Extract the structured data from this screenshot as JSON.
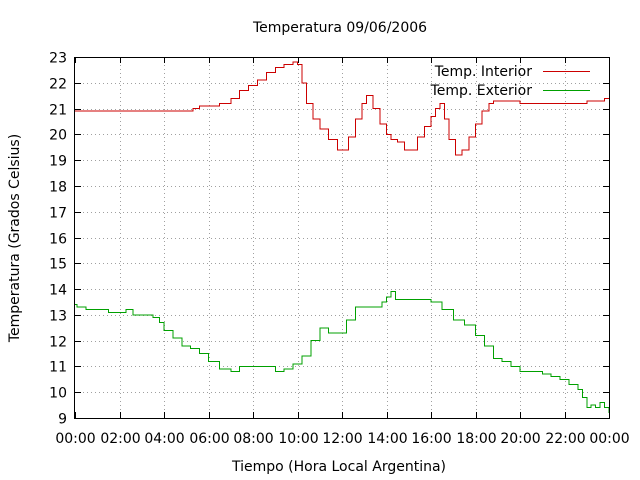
{
  "chart_data": {
    "type": "line",
    "title": "Temperatura 09/06/2006",
    "xlabel": "Tiempo (Hora Local Argentina)",
    "ylabel": "Temperatura (Grados Celsius)",
    "xlim": [
      0,
      24
    ],
    "ylim": [
      9,
      23
    ],
    "x_ticks": [
      "00:00",
      "02:00",
      "04:00",
      "06:00",
      "08:00",
      "10:00",
      "12:00",
      "14:00",
      "16:00",
      "18:00",
      "20:00",
      "22:00",
      "00:00"
    ],
    "y_ticks": [
      "9",
      "10",
      "11",
      "12",
      "13",
      "14",
      "15",
      "16",
      "17",
      "18",
      "19",
      "20",
      "21",
      "22",
      "23"
    ],
    "grid": true,
    "legend_position": "top-right",
    "series": [
      {
        "name": "Temp. Interior",
        "color": "#cc0000",
        "x": [
          0,
          5.25,
          5.3,
          5.6,
          6.0,
          6.5,
          6.8,
          7.0,
          7.4,
          7.8,
          8.2,
          8.6,
          9.0,
          9.4,
          9.8,
          10.0,
          10.2,
          10.4,
          10.7,
          11.0,
          11.4,
          11.8,
          12.1,
          12.3,
          12.6,
          12.9,
          13.1,
          13.4,
          13.7,
          14.0,
          14.2,
          14.5,
          14.8,
          15.1,
          15.4,
          15.7,
          16.0,
          16.2,
          16.4,
          16.6,
          16.8,
          17.1,
          17.4,
          17.7,
          18.0,
          18.3,
          18.6,
          18.8,
          19.2,
          20.0,
          21.0,
          22.0,
          22.6,
          23.0,
          23.4,
          23.8,
          24.0
        ],
        "y": [
          20.9,
          20.9,
          21.0,
          21.1,
          21.1,
          21.2,
          21.2,
          21.4,
          21.7,
          21.9,
          22.1,
          22.4,
          22.6,
          22.7,
          22.8,
          22.7,
          22.0,
          21.2,
          20.6,
          20.2,
          19.8,
          19.4,
          19.4,
          19.9,
          20.6,
          21.2,
          21.5,
          21.0,
          20.4,
          20.0,
          19.8,
          19.7,
          19.4,
          19.4,
          19.9,
          20.3,
          20.7,
          21.0,
          21.2,
          20.6,
          19.8,
          19.2,
          19.4,
          19.9,
          20.4,
          20.9,
          21.2,
          21.3,
          21.3,
          21.2,
          21.2,
          21.2,
          21.2,
          21.3,
          21.3,
          21.4,
          21.4
        ]
      },
      {
        "name": "Temp. Exterior",
        "color": "#00a000",
        "x": [
          0,
          0.1,
          0.5,
          1.0,
          1.5,
          2.0,
          2.3,
          2.6,
          3.0,
          3.5,
          3.8,
          4.0,
          4.4,
          4.8,
          5.2,
          5.6,
          6.0,
          6.5,
          7.0,
          7.4,
          7.8,
          8.2,
          8.6,
          9.0,
          9.4,
          9.8,
          10.2,
          10.6,
          11.0,
          11.4,
          11.8,
          12.2,
          12.6,
          13.0,
          13.4,
          13.8,
          14.0,
          14.2,
          14.4,
          14.6,
          15.0,
          15.5,
          16.0,
          16.5,
          17.0,
          17.5,
          18.0,
          18.4,
          18.8,
          19.2,
          19.6,
          20.0,
          21.0,
          21.4,
          21.8,
          22.2,
          22.6,
          22.8,
          23.0,
          23.2,
          23.4,
          23.6,
          23.8,
          24.0
        ],
        "y": [
          13.4,
          13.3,
          13.2,
          13.2,
          13.1,
          13.1,
          13.2,
          13.0,
          13.0,
          12.9,
          12.7,
          12.4,
          12.1,
          11.8,
          11.7,
          11.5,
          11.2,
          10.9,
          10.8,
          11.0,
          11.0,
          11.0,
          11.0,
          10.8,
          10.9,
          11.1,
          11.4,
          12.0,
          12.5,
          12.3,
          12.3,
          12.8,
          13.3,
          13.3,
          13.3,
          13.5,
          13.7,
          13.9,
          13.6,
          13.6,
          13.6,
          13.6,
          13.5,
          13.2,
          12.8,
          12.6,
          12.2,
          11.8,
          11.3,
          11.2,
          11.0,
          10.8,
          10.7,
          10.6,
          10.5,
          10.3,
          10.1,
          9.8,
          9.4,
          9.5,
          9.4,
          9.6,
          9.4,
          9.2
        ]
      }
    ]
  }
}
